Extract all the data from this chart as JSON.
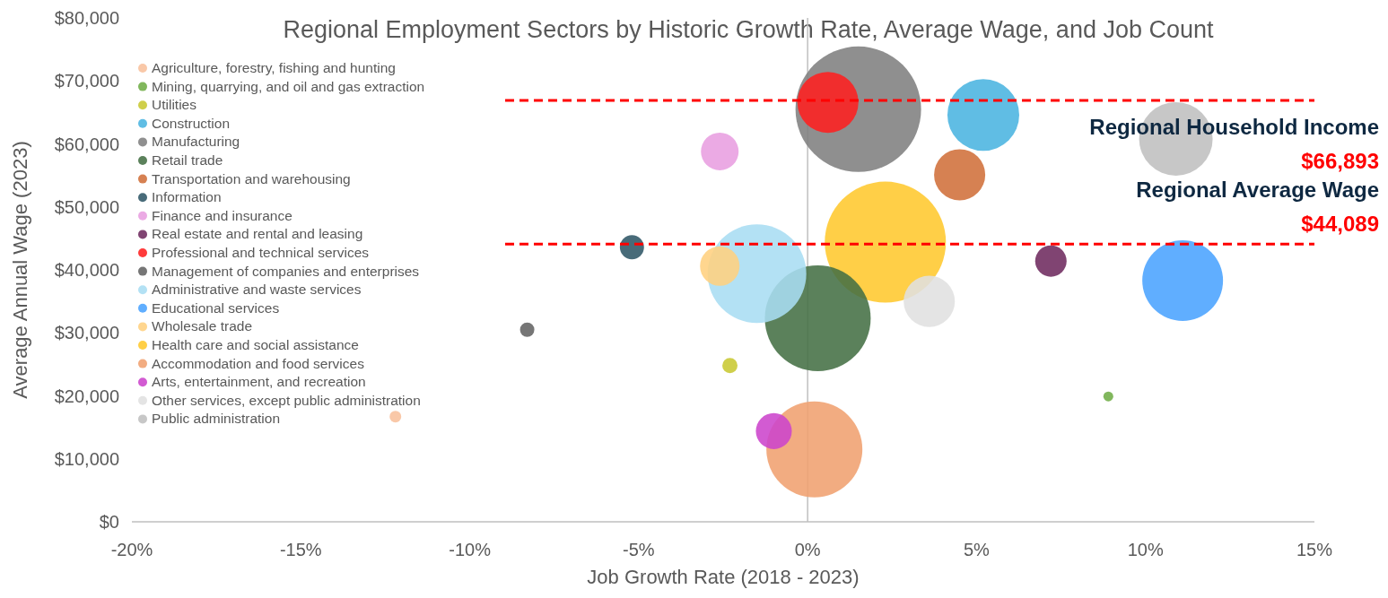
{
  "chart_data": {
    "type": "bubble",
    "annotations": [
      "$66,893",
      "$44,089"
    ],
    "title": "Regional Employment Sectors by Historic Growth Rate, Average Wage, and Job Count",
    "xlabel": "Job Growth Rate (2018 - 2023)",
    "ylabel": "Average Annual Wage (2023)",
    "xlim": [
      -20,
      15
    ],
    "ylim": [
      0,
      80000
    ],
    "xticks": [
      {
        "value": -20,
        "label": "-20%"
      },
      {
        "value": -15,
        "label": "-15%"
      },
      {
        "value": -10,
        "label": "-10%"
      },
      {
        "value": -5,
        "label": "-5%"
      },
      {
        "value": 0,
        "label": "0%"
      },
      {
        "value": 5,
        "label": "5%"
      },
      {
        "value": 10,
        "label": "10%"
      },
      {
        "value": 15,
        "label": "15%"
      }
    ],
    "yticks": [
      {
        "value": 0,
        "label": "$0"
      },
      {
        "value": 10000,
        "label": "$10,000"
      },
      {
        "value": 20000,
        "label": "$20,000"
      },
      {
        "value": 30000,
        "label": "$30,000"
      },
      {
        "value": 40000,
        "label": "$40,000"
      },
      {
        "value": 50000,
        "label": "$50,000"
      },
      {
        "value": 60000,
        "label": "$60,000"
      },
      {
        "value": 70000,
        "label": "$70,000"
      },
      {
        "value": 80000,
        "label": "$80,000"
      }
    ],
    "legend": "top left",
    "marker": "circle",
    "ref_lines": [
      {
        "axis": "x",
        "value": 0,
        "color": "#bfbfbf",
        "line_style": "solid"
      },
      {
        "axis": "y",
        "value": 66893,
        "label": "Regional Household Income",
        "color": "#ff0000",
        "line_style": "dashed"
      },
      {
        "axis": "y",
        "value": 44089,
        "label": "Regional Average Wage",
        "color": "#ff0000",
        "line_style": "dashed"
      }
    ],
    "series": [
      {
        "name": "Agriculture, forestry, fishing and hunting",
        "color": "#f8c09c",
        "x": [
          -12.2
        ],
        "values": [
          16700
        ],
        "sizes": [
          0.0086
        ]
      },
      {
        "name": "Mining, quarrying, and oil and gas extraction",
        "color": "#70ad47",
        "x": [
          8.9
        ],
        "values": [
          19900
        ],
        "sizes": [
          0.0062
        ]
      },
      {
        "name": "Utilities",
        "color": "#c8c832",
        "x": [
          -2.3
        ],
        "values": [
          24800
        ],
        "sizes": [
          0.0147
        ]
      },
      {
        "name": "Construction",
        "color": "#4ab4e0",
        "x": [
          5.2
        ],
        "values": [
          64600
        ],
        "sizes": [
          0.327
        ]
      },
      {
        "name": "Manufacturing",
        "color": "#7f7f7f",
        "x": [
          1.5
        ],
        "values": [
          65500
        ],
        "sizes": [
          1
        ]
      },
      {
        "name": "Retail trade",
        "color": "#446f44",
        "x": [
          0.3
        ],
        "values": [
          32300
        ],
        "sizes": [
          0.71
        ]
      },
      {
        "name": "Transportation and warehousing",
        "color": "#d0703a",
        "x": [
          4.5
        ],
        "values": [
          55100
        ],
        "sizes": [
          0.166
        ]
      },
      {
        "name": "Information",
        "color": "#2f5767",
        "x": [
          -5.2
        ],
        "values": [
          43600
        ],
        "sizes": [
          0.037
        ]
      },
      {
        "name": "Finance and insurance",
        "color": "#e89ee0",
        "x": [
          -2.6
        ],
        "values": [
          58800
        ],
        "sizes": [
          0.09
        ]
      },
      {
        "name": "Real estate and rental and leasing",
        "color": "#6e2a5e",
        "x": [
          7.2
        ],
        "values": [
          41400
        ],
        "sizes": [
          0.0625
        ]
      },
      {
        "name": "Professional and technical services",
        "color": "#ff2020",
        "x": [
          0.6
        ],
        "values": [
          66600
        ],
        "sizes": [
          0.236
        ]
      },
      {
        "name": "Management of companies and enterprises",
        "color": "#636363",
        "x": [
          -8.3
        ],
        "values": [
          30500
        ],
        "sizes": [
          0.013
        ]
      },
      {
        "name": "Administrative and waste services",
        "color": "#a9ddf3",
        "x": [
          -1.5
        ],
        "values": [
          39400
        ],
        "sizes": [
          0.617
        ]
      },
      {
        "name": "Educational services",
        "color": "#4aa3ff",
        "x": [
          11.1
        ],
        "values": [
          38300
        ],
        "sizes": [
          0.413
        ]
      },
      {
        "name": "Wholesale trade",
        "color": "#ffd080",
        "x": [
          -2.6
        ],
        "values": [
          40600
        ],
        "sizes": [
          0.099
        ]
      },
      {
        "name": "Health care and social assistance",
        "color": "#ffc82e",
        "x": [
          2.3
        ],
        "values": [
          44400
        ],
        "sizes": [
          0.93
        ]
      },
      {
        "name": "Accommodation and food services",
        "color": "#f0a070",
        "x": [
          0.2
        ],
        "values": [
          11500
        ],
        "sizes": [
          0.584
        ]
      },
      {
        "name": "Arts, entertainment, and recreation",
        "color": "#cc44cc",
        "x": [
          -1.0
        ],
        "values": [
          14400
        ],
        "sizes": [
          0.082
        ]
      },
      {
        "name": "Other services, except public administration",
        "color": "#e0e0e0",
        "x": [
          3.6
        ],
        "values": [
          35000
        ],
        "sizes": [
          0.166
        ]
      },
      {
        "name": "Public administration",
        "color": "#bfbfbf",
        "x": [
          10.9
        ],
        "values": [
          60800
        ],
        "sizes": [
          0.343
        ]
      }
    ]
  }
}
